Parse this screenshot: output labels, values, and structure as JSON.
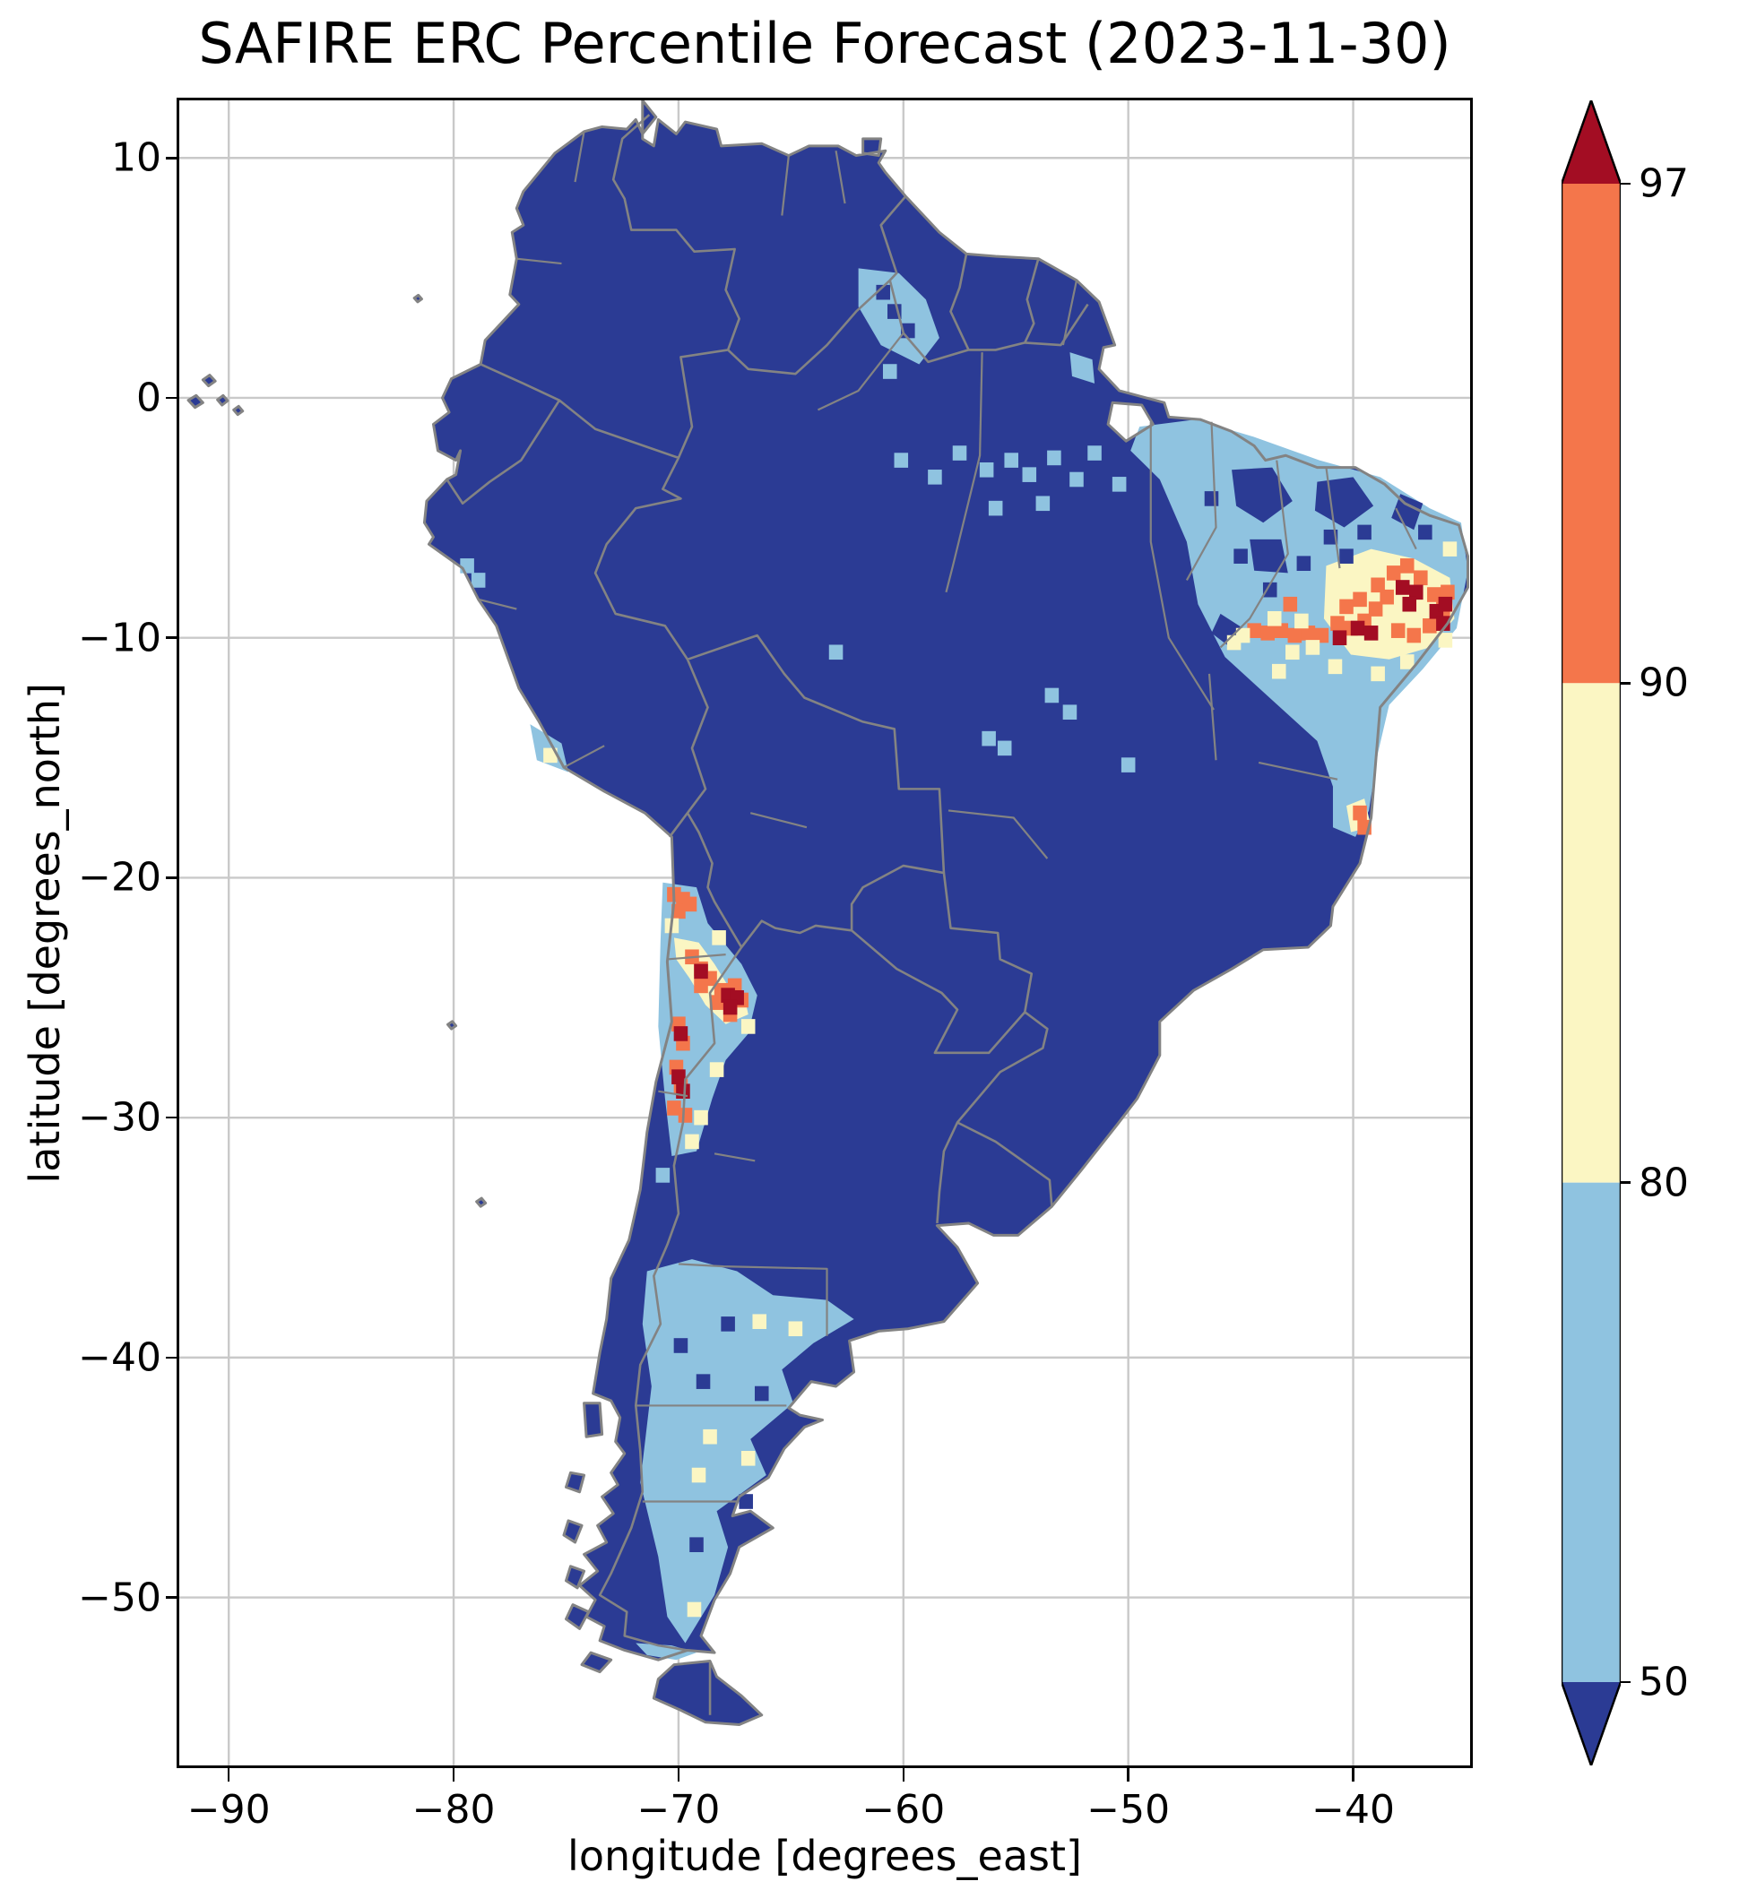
{
  "chart_data": {
    "type": "heatmap",
    "title": "SAFIRE ERC Percentile Forecast (2023-11-30)",
    "date_label": "2023-11-30",
    "xlabel": "longitude [degrees_east]",
    "ylabel": "latitude [degrees_north]",
    "xlim": [
      -92.2,
      -34.8
    ],
    "ylim": [
      -57.0,
      12.4
    ],
    "grid": true,
    "x_ticks": [
      -90,
      -80,
      -70,
      -60,
      -50,
      -40
    ],
    "x_tick_labels": [
      "−90",
      "−80",
      "−70",
      "−60",
      "−50",
      "−40"
    ],
    "y_ticks": [
      10,
      0,
      -10,
      -20,
      -30,
      -40,
      -50
    ],
    "y_tick_labels": [
      "10",
      "0",
      "−10",
      "−20",
      "−30",
      "−40",
      "−50"
    ],
    "levels": [
      50,
      80,
      90,
      97
    ],
    "level_scale": {
      "0": "<50",
      "1": "50-80",
      "2": "80-90",
      "3": "90-97",
      "4": ">97"
    },
    "palette": {
      "under": "#2b3b94",
      "band_50_80": "#8fc3e0",
      "band_80_90": "#fbf6c3",
      "band_90_97": "#f4764b",
      "over": "#a30d23",
      "grid": "#c9c9c9",
      "border": "#838383",
      "frame": "#000000",
      "background": "#ffffff"
    },
    "colorbar": {
      "position": "right",
      "spacing": "uniform",
      "extend": "both",
      "boundary_labels": [
        "97",
        "90",
        "80",
        "50"
      ]
    },
    "cell_size_deg": 0.62,
    "regions": [
      {
        "level": 1,
        "pts": [
          [
            -62.0,
            5.4
          ],
          [
            -60.2,
            5.2
          ],
          [
            -59.0,
            4.1
          ],
          [
            -58.4,
            2.5
          ],
          [
            -59.3,
            1.4
          ],
          [
            -61.0,
            2.2
          ],
          [
            -62.0,
            3.8
          ]
        ]
      },
      {
        "level": 1,
        "pts": [
          [
            -49.5,
            -1.2
          ],
          [
            -47.0,
            -0.9
          ],
          [
            -44.5,
            -1.6
          ],
          [
            -41.5,
            -2.6
          ],
          [
            -38.8,
            -3.3
          ],
          [
            -36.6,
            -4.6
          ],
          [
            -35.2,
            -5.2
          ],
          [
            -34.9,
            -7.2
          ],
          [
            -35.4,
            -9.6
          ],
          [
            -36.9,
            -11.3
          ],
          [
            -38.4,
            -12.8
          ],
          [
            -38.9,
            -14.8
          ],
          [
            -39.3,
            -17.2
          ],
          [
            -39.9,
            -18.3
          ],
          [
            -40.9,
            -17.9
          ],
          [
            -40.9,
            -16.2
          ],
          [
            -41.6,
            -14.3
          ],
          [
            -43.6,
            -12.6
          ],
          [
            -45.7,
            -10.8
          ],
          [
            -46.9,
            -8.6
          ],
          [
            -47.4,
            -6.0
          ],
          [
            -48.6,
            -3.4
          ],
          [
            -49.9,
            -2.2
          ]
        ]
      },
      {
        "level": 1,
        "pts": [
          [
            -76.6,
            -13.6
          ],
          [
            -75.2,
            -14.4
          ],
          [
            -74.9,
            -15.6
          ],
          [
            -76.3,
            -15.1
          ]
        ]
      },
      {
        "level": 1,
        "pts": [
          [
            -70.7,
            -20.2
          ],
          [
            -69.2,
            -20.4
          ],
          [
            -68.7,
            -21.9
          ],
          [
            -67.2,
            -23.6
          ],
          [
            -66.5,
            -24.9
          ],
          [
            -66.9,
            -26.5
          ],
          [
            -67.9,
            -27.6
          ],
          [
            -68.5,
            -29.2
          ],
          [
            -69.2,
            -31.4
          ],
          [
            -70.3,
            -31.6
          ],
          [
            -70.6,
            -29.2
          ],
          [
            -70.9,
            -26.2
          ],
          [
            -70.8,
            -22.6
          ]
        ]
      },
      {
        "level": 1,
        "pts": [
          [
            -71.4,
            -36.4
          ],
          [
            -69.4,
            -35.9
          ],
          [
            -67.4,
            -36.4
          ],
          [
            -65.8,
            -37.4
          ],
          [
            -63.4,
            -37.6
          ],
          [
            -62.2,
            -38.4
          ],
          [
            -64.0,
            -39.4
          ],
          [
            -65.4,
            -40.5
          ],
          [
            -64.9,
            -41.9
          ],
          [
            -66.8,
            -43.4
          ],
          [
            -66.1,
            -44.9
          ],
          [
            -68.3,
            -46.4
          ],
          [
            -67.8,
            -47.9
          ],
          [
            -68.4,
            -49.9
          ],
          [
            -69.7,
            -51.9
          ],
          [
            -70.5,
            -50.8
          ],
          [
            -70.9,
            -48.3
          ],
          [
            -71.7,
            -45.2
          ],
          [
            -71.2,
            -41.2
          ],
          [
            -71.6,
            -38.6
          ]
        ]
      },
      {
        "level": 1,
        "pts": [
          [
            -71.9,
            -51.9
          ],
          [
            -70.3,
            -52.0
          ],
          [
            -69.2,
            -52.3
          ],
          [
            -70.1,
            -52.6
          ],
          [
            -71.4,
            -52.4
          ]
        ]
      },
      {
        "level": 1,
        "pts": [
          [
            -52.6,
            1.9
          ],
          [
            -51.6,
            1.6
          ],
          [
            -51.5,
            0.6
          ],
          [
            -52.5,
            0.9
          ]
        ]
      },
      {
        "level": 0,
        "pts": [
          [
            -45.4,
            -3.0
          ],
          [
            -43.6,
            -2.9
          ],
          [
            -42.7,
            -4.3
          ],
          [
            -44.0,
            -5.2
          ],
          [
            -45.2,
            -4.5
          ]
        ]
      },
      {
        "level": 0,
        "pts": [
          [
            -41.6,
            -3.5
          ],
          [
            -40.0,
            -3.3
          ],
          [
            -39.1,
            -4.5
          ],
          [
            -40.4,
            -5.4
          ],
          [
            -41.7,
            -4.7
          ]
        ]
      },
      {
        "level": 0,
        "pts": [
          [
            -44.6,
            -5.9
          ],
          [
            -43.2,
            -5.9
          ],
          [
            -42.9,
            -7.3
          ],
          [
            -44.4,
            -7.2
          ]
        ]
      },
      {
        "level": 0,
        "pts": [
          [
            -37.9,
            -4.0
          ],
          [
            -36.9,
            -4.4
          ],
          [
            -37.3,
            -5.5
          ],
          [
            -38.3,
            -5.0
          ]
        ]
      },
      {
        "level": 0,
        "pts": [
          [
            -45.9,
            -9.0
          ],
          [
            -44.9,
            -9.6
          ],
          [
            -45.6,
            -10.3
          ],
          [
            -46.3,
            -9.8
          ]
        ]
      },
      {
        "level": 2,
        "pts": [
          [
            -41.2,
            -7.0
          ],
          [
            -39.2,
            -6.3
          ],
          [
            -37.3,
            -6.7
          ],
          [
            -35.7,
            -7.5
          ],
          [
            -35.5,
            -9.2
          ],
          [
            -36.6,
            -10.4
          ],
          [
            -38.4,
            -10.9
          ],
          [
            -40.1,
            -10.7
          ],
          [
            -41.3,
            -9.2
          ]
        ]
      },
      {
        "level": 2,
        "pts": [
          [
            -70.2,
            -22.5
          ],
          [
            -69.1,
            -22.7
          ],
          [
            -68.4,
            -23.6
          ],
          [
            -67.8,
            -24.5
          ],
          [
            -67.1,
            -24.8
          ],
          [
            -66.9,
            -25.7
          ],
          [
            -67.9,
            -26.1
          ],
          [
            -68.8,
            -25.3
          ],
          [
            -69.5,
            -24.2
          ],
          [
            -70.1,
            -23.4
          ]
        ]
      },
      {
        "level": 2,
        "pts": [
          [
            -40.3,
            -17.0
          ],
          [
            -39.5,
            -16.7
          ],
          [
            -39.2,
            -17.9
          ],
          [
            -40.1,
            -18.1
          ]
        ]
      }
    ],
    "cells": [
      [
        -44.4,
        -9.7,
        3
      ],
      [
        -43.8,
        -9.8,
        3
      ],
      [
        -43.2,
        -9.7,
        3
      ],
      [
        -42.6,
        -9.9,
        3
      ],
      [
        -42,
        -9.8,
        3
      ],
      [
        -41.4,
        -9.9,
        3
      ],
      [
        -40.7,
        -9.4,
        3
      ],
      [
        -40.1,
        -9.6,
        3
      ],
      [
        -39.5,
        -9.3,
        3
      ],
      [
        -40.3,
        -8.7,
        3
      ],
      [
        -39.7,
        -8.4,
        3
      ],
      [
        -39,
        -8.8,
        3
      ],
      [
        -38.5,
        -8.3,
        3
      ],
      [
        -38.9,
        -7.8,
        3
      ],
      [
        -38.2,
        -7.3,
        3
      ],
      [
        -37.6,
        -7,
        3
      ],
      [
        -37,
        -7.5,
        3
      ],
      [
        -36.4,
        -8.2,
        3
      ],
      [
        -36,
        -8.8,
        3
      ],
      [
        -36.6,
        -9.5,
        3
      ],
      [
        -37.3,
        -9.9,
        3
      ],
      [
        -38,
        -9.7,
        3
      ],
      [
        -35.8,
        -8.1,
        3
      ],
      [
        -42.8,
        -8.6,
        3
      ],
      [
        -39.7,
        -17.3,
        3
      ],
      [
        -39.5,
        -17.9,
        3
      ],
      [
        -70.2,
        -20.7,
        3
      ],
      [
        -69.8,
        -20.9,
        3
      ],
      [
        -70,
        -21.4,
        3
      ],
      [
        -69.5,
        -21.1,
        3
      ],
      [
        -69.4,
        -23.3,
        3
      ],
      [
        -69,
        -23.8,
        3
      ],
      [
        -68.6,
        -24.2,
        3
      ],
      [
        -68.1,
        -24.7,
        3
      ],
      [
        -67.5,
        -24.5,
        3
      ],
      [
        -67.2,
        -25.1,
        3
      ],
      [
        -67.7,
        -25.7,
        3
      ],
      [
        -68.3,
        -25.2,
        3
      ],
      [
        -69,
        -24.5,
        3
      ],
      [
        -70,
        -26.1,
        3
      ],
      [
        -69.8,
        -26.9,
        3
      ],
      [
        -70.1,
        -27.9,
        3
      ],
      [
        -69.9,
        -28.7,
        3
      ],
      [
        -70.2,
        -29.6,
        3
      ],
      [
        -69.7,
        -29.9,
        3
      ],
      [
        -37.8,
        -7.9,
        4
      ],
      [
        -37.2,
        -8.1,
        4
      ],
      [
        -37.5,
        -8.6,
        4
      ],
      [
        -36.3,
        -8.9,
        4
      ],
      [
        -36,
        -9.4,
        4
      ],
      [
        -35.9,
        -8.6,
        4
      ],
      [
        -39.8,
        -9.6,
        4
      ],
      [
        -39.2,
        -9.8,
        4
      ],
      [
        -40.6,
        -10,
        4
      ],
      [
        -69,
        -23.9,
        4
      ],
      [
        -67.8,
        -24.9,
        4
      ],
      [
        -67.4,
        -25,
        4
      ],
      [
        -67.7,
        -25.4,
        4
      ],
      [
        -69.9,
        -26.5,
        4
      ],
      [
        -70,
        -28.3,
        4
      ],
      [
        -69.8,
        -28.9,
        4
      ],
      [
        -44.9,
        -9.9,
        2
      ],
      [
        -43.5,
        -9.2,
        2
      ],
      [
        -42.3,
        -9.3,
        2
      ],
      [
        -41.8,
        -10.4,
        2
      ],
      [
        -40.8,
        -11.2,
        2
      ],
      [
        -42.7,
        -10.6,
        2
      ],
      [
        -45.3,
        -10.2,
        2
      ],
      [
        -38.9,
        -11.5,
        2
      ],
      [
        -37.6,
        -11,
        2
      ],
      [
        -35.9,
        -10.1,
        2
      ],
      [
        -35.7,
        -6.3,
        2
      ],
      [
        -43.3,
        -11.4,
        2
      ],
      [
        -68.2,
        -22.5,
        2
      ],
      [
        -70.3,
        -22,
        2
      ],
      [
        -66.9,
        -26.2,
        2
      ],
      [
        -68.3,
        -28,
        2
      ],
      [
        -69,
        -30,
        2
      ],
      [
        -69.4,
        -31,
        2
      ],
      [
        -66.4,
        -38.5,
        2
      ],
      [
        -64.8,
        -38.8,
        2
      ],
      [
        -68.6,
        -43.3,
        2
      ],
      [
        -66.9,
        -44.2,
        2
      ],
      [
        -69.1,
        -44.9,
        2
      ],
      [
        -69.3,
        -50.5,
        2
      ],
      [
        -75.7,
        -14.9,
        2
      ],
      [
        -55.2,
        -2.6,
        1
      ],
      [
        -54.4,
        -3.2,
        1
      ],
      [
        -53.3,
        -2.5,
        1
      ],
      [
        -52.3,
        -3.4,
        1
      ],
      [
        -56.3,
        -3,
        1
      ],
      [
        -57.5,
        -2.3,
        1
      ],
      [
        -58.6,
        -3.3,
        1
      ],
      [
        -60.1,
        -2.6,
        1
      ],
      [
        -51.5,
        -2.3,
        1
      ],
      [
        -50.4,
        -3.6,
        1
      ],
      [
        -53.8,
        -4.4,
        1
      ],
      [
        -55.9,
        -4.6,
        1
      ],
      [
        -52.6,
        -13.1,
        1
      ],
      [
        -55.5,
        -14.6,
        1
      ],
      [
        -50,
        -15.3,
        1
      ],
      [
        -56.2,
        -14.2,
        1
      ],
      [
        -53.4,
        -12.4,
        1
      ],
      [
        -63,
        -10.6,
        1
      ],
      [
        -60.6,
        1.1,
        1
      ],
      [
        -70.7,
        -32.4,
        1
      ],
      [
        -79.4,
        -7,
        1
      ],
      [
        -78.9,
        -7.6,
        1
      ],
      [
        -60.4,
        3.6,
        0
      ],
      [
        -59.8,
        2.8,
        0
      ],
      [
        -60.9,
        4.4,
        0
      ],
      [
        -46.3,
        -4.2,
        0
      ],
      [
        -45,
        -6.6,
        0
      ],
      [
        -43.7,
        -8,
        0
      ],
      [
        -41,
        -5.8,
        0
      ],
      [
        -39.5,
        -5.6,
        0
      ],
      [
        -36.8,
        -5.6,
        0
      ],
      [
        -42.2,
        -6.9,
        0
      ],
      [
        -40.3,
        -6.6,
        0
      ],
      [
        -67.8,
        -38.6,
        0
      ],
      [
        -66.3,
        -41.5,
        0
      ],
      [
        -68.9,
        -41,
        0
      ],
      [
        -69.9,
        -39.5,
        0
      ],
      [
        -67,
        -46,
        0
      ],
      [
        -69.2,
        -47.8,
        0
      ]
    ]
  }
}
